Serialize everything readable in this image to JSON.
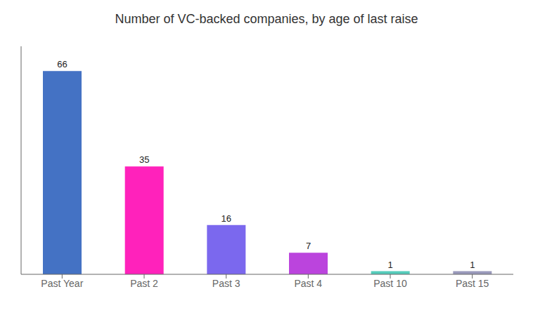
{
  "chart_data": {
    "type": "bar",
    "title": "Number of VC-backed companies, by age of last raise",
    "categories": [
      "Past Year",
      "Past 2",
      "Past 3",
      "Past 4",
      "Past 10",
      "Past 15"
    ],
    "values": [
      66,
      35,
      16,
      7,
      1,
      1
    ],
    "colors": [
      "#4472C4",
      "#FF22BB",
      "#7B68EE",
      "#BB44DD",
      "#55CCBB",
      "#9999BB"
    ],
    "ylim": [
      0,
      74
    ],
    "data_labels": true,
    "tick_labels": "x",
    "grid": false
  }
}
